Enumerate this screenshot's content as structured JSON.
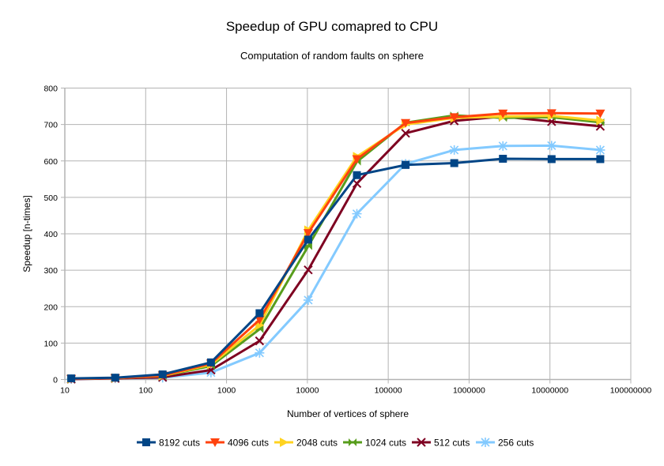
{
  "chart_data": {
    "type": "line",
    "title": "Speedup of GPU comapred to CPU",
    "subtitle": "Computation of random faults on sphere",
    "xlabel": "Number of vertices of sphere",
    "ylabel": "Speedup [n-times]",
    "xscale": "log",
    "xlim": [
      10,
      100000000
    ],
    "ylim": [
      0,
      800
    ],
    "x_ticks": [
      "10",
      "100",
      "1000",
      "10000",
      "100000",
      "1000000",
      "10000000",
      "100000000"
    ],
    "x_tick_values": [
      10,
      100,
      1000,
      10000,
      100000,
      1000000,
      10000000,
      100000000
    ],
    "y_ticks": [
      "0",
      "100",
      "200",
      "300",
      "400",
      "500",
      "600",
      "700",
      "800"
    ],
    "y_tick_values": [
      0,
      100,
      200,
      300,
      400,
      500,
      600,
      700,
      800
    ],
    "grid": true,
    "legend_position": "bottom",
    "x": [
      12,
      42,
      162,
      642,
      2562,
      10242,
      40962,
      163842,
      655362,
      2621442,
      10485762,
      41943042
    ],
    "series": [
      {
        "name": "8192 cuts",
        "color": "#004586",
        "marker": "square",
        "values": [
          3,
          5,
          14,
          47,
          182,
          384,
          561,
          589,
          594,
          606,
          605,
          605
        ]
      },
      {
        "name": "4096 cuts",
        "color": "#ff420e",
        "marker": "triangle-down",
        "values": [
          2,
          4,
          11,
          44,
          164,
          402,
          605,
          704,
          720,
          730,
          731,
          730
        ]
      },
      {
        "name": "2048 cuts",
        "color": "#ffd320",
        "marker": "triangle-right",
        "values": [
          2,
          4,
          10,
          41,
          149,
          410,
          612,
          700,
          718,
          722,
          724,
          711
        ]
      },
      {
        "name": "1024 cuts",
        "color": "#579d1c",
        "marker": "bowtie",
        "values": [
          2,
          4,
          10,
          37,
          138,
          366,
          598,
          705,
          725,
          718,
          720,
          706
        ]
      },
      {
        "name": "512 cuts",
        "color": "#7e0021",
        "marker": "x",
        "values": [
          1,
          3,
          6,
          26,
          106,
          301,
          538,
          676,
          710,
          722,
          708,
          695
        ]
      },
      {
        "name": "256 cuts",
        "color": "#83caff",
        "marker": "asterisk",
        "values": [
          1,
          3,
          5,
          19,
          73,
          218,
          455,
          592,
          630,
          641,
          642,
          630
        ]
      }
    ]
  }
}
